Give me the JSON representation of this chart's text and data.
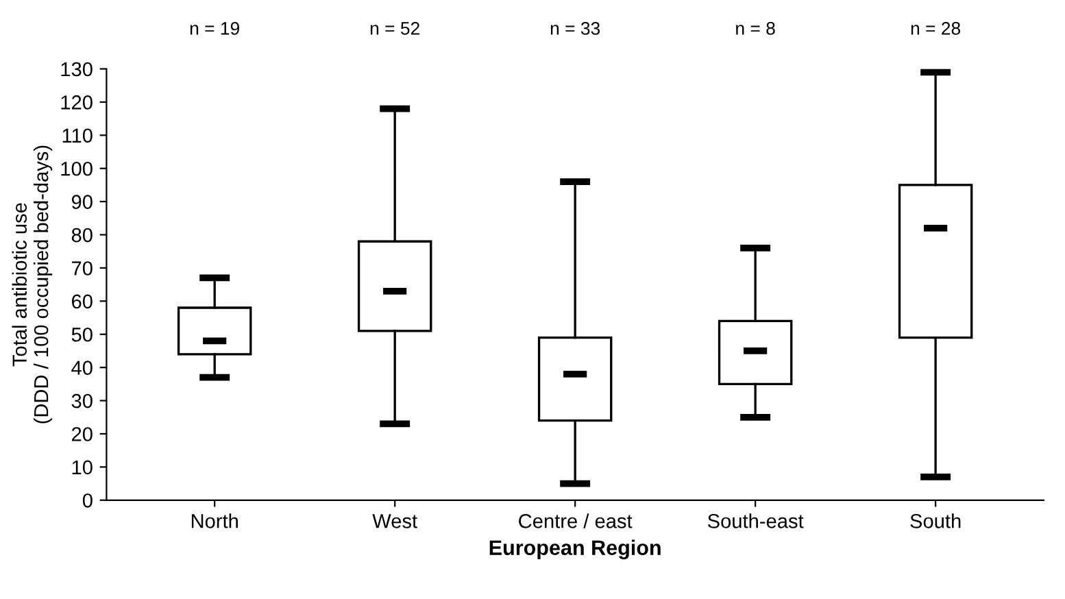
{
  "chart_data": {
    "type": "box",
    "xlabel": "European Region",
    "ylabel": "Total antibiotic use\n(DDD / 100 occupied bed-days)",
    "categories": [
      "North",
      "West",
      "Centre / east",
      "South-east",
      "South"
    ],
    "boxes": [
      {
        "low": 37,
        "q1": 44,
        "median": 48,
        "q3": 58,
        "high": 67
      },
      {
        "low": 23,
        "q1": 51,
        "median": 63,
        "q3": 78,
        "high": 118
      },
      {
        "low": 5,
        "q1": 24,
        "median": 38,
        "q3": 49,
        "high": 96
      },
      {
        "low": 25,
        "q1": 35,
        "median": 45,
        "q3": 54,
        "high": 76
      },
      {
        "low": 7,
        "q1": 49,
        "median": 82,
        "q3": 95,
        "high": 129
      }
    ],
    "ylim": [
      0,
      130
    ],
    "yticks": [
      0,
      10,
      20,
      30,
      40,
      50,
      60,
      70,
      80,
      90,
      100,
      110,
      120,
      130
    ],
    "grid": false,
    "legend": false,
    "annotations": [
      "n = 19",
      "n = 52",
      "n = 33",
      "n = 8",
      "n = 28"
    ]
  }
}
